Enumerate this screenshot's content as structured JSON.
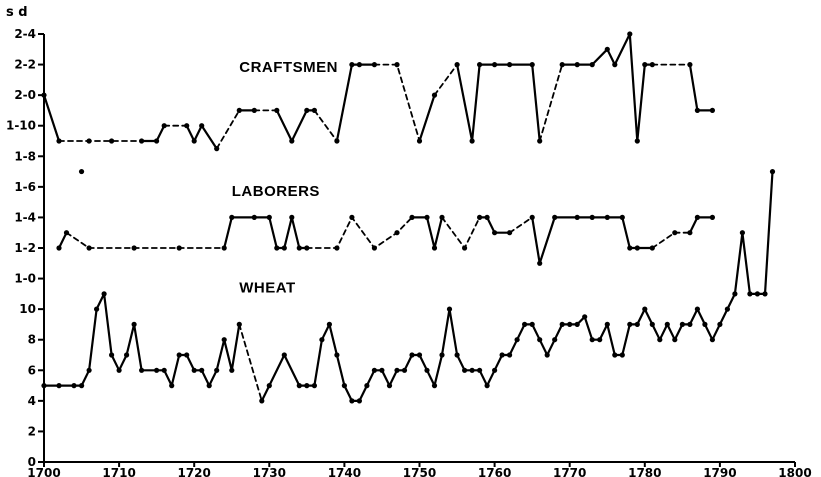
{
  "chart_data": {
    "type": "line",
    "title": "",
    "xlabel": "",
    "ylabel": "s d",
    "xlim": [
      1700,
      1800
    ],
    "x_ticks": [
      1700,
      1710,
      1720,
      1730,
      1740,
      1750,
      1760,
      1770,
      1780,
      1790,
      1800
    ],
    "ylim": [
      0,
      28
    ],
    "y_ticks": [
      {
        "value": 0,
        "label": "0"
      },
      {
        "value": 2,
        "label": "2"
      },
      {
        "value": 4,
        "label": "4"
      },
      {
        "value": 6,
        "label": "6"
      },
      {
        "value": 8,
        "label": "8"
      },
      {
        "value": 10,
        "label": "10"
      },
      {
        "value": 12,
        "label": "1-0"
      },
      {
        "value": 14,
        "label": "1-2"
      },
      {
        "value": 16,
        "label": "1-4"
      },
      {
        "value": 18,
        "label": "1-6"
      },
      {
        "value": 20,
        "label": "1-8"
      },
      {
        "value": 22,
        "label": "1-10"
      },
      {
        "value": 24,
        "label": "2-0"
      },
      {
        "value": 26,
        "label": "2-2"
      },
      {
        "value": 28,
        "label": "2-4"
      }
    ],
    "grid": false,
    "series": [
      {
        "name": "CRAFTSMEN",
        "segments": [
          {
            "style": "solid",
            "points": [
              [
                1700,
                24
              ],
              [
                1702,
                21
              ]
            ]
          },
          {
            "style": "dashed",
            "points": [
              [
                1702,
                21
              ],
              [
                1706,
                21
              ],
              [
                1709,
                21
              ],
              [
                1713,
                21
              ]
            ]
          },
          {
            "style": "solid",
            "points": [
              [
                1713,
                21
              ],
              [
                1715,
                21
              ],
              [
                1716,
                22
              ]
            ]
          },
          {
            "style": "dashed",
            "points": [
              [
                1716,
                22
              ],
              [
                1719,
                22
              ]
            ]
          },
          {
            "style": "solid",
            "points": [
              [
                1719,
                22
              ],
              [
                1720,
                21
              ],
              [
                1721,
                22
              ],
              [
                1723,
                20.5
              ]
            ]
          },
          {
            "style": "dashed",
            "points": [
              [
                1723,
                20.5
              ],
              [
                1726,
                23
              ]
            ]
          },
          {
            "style": "solid",
            "points": [
              [
                1726,
                23
              ],
              [
                1728,
                23
              ]
            ]
          },
          {
            "style": "dashed",
            "points": [
              [
                1728,
                23
              ],
              [
                1731,
                23
              ]
            ]
          },
          {
            "style": "solid",
            "points": [
              [
                1731,
                23
              ],
              [
                1733,
                21
              ],
              [
                1735,
                23
              ],
              [
                1736,
                23
              ]
            ]
          },
          {
            "style": "dashed",
            "points": [
              [
                1736,
                23
              ],
              [
                1739,
                21
              ]
            ]
          },
          {
            "style": "solid",
            "points": [
              [
                1739,
                21
              ],
              [
                1741,
                26
              ],
              [
                1742,
                26
              ],
              [
                1744,
                26
              ]
            ]
          },
          {
            "style": "dashed",
            "points": [
              [
                1744,
                26
              ],
              [
                1747,
                26
              ],
              [
                1750,
                21
              ]
            ]
          },
          {
            "style": "solid",
            "points": [
              [
                1750,
                21
              ],
              [
                1752,
                24
              ]
            ]
          },
          {
            "style": "dashed",
            "points": [
              [
                1752,
                24
              ],
              [
                1755,
                26
              ]
            ]
          },
          {
            "style": "solid",
            "points": [
              [
                1755,
                26
              ],
              [
                1757,
                21
              ],
              [
                1758,
                26
              ],
              [
                1760,
                26
              ],
              [
                1762,
                26
              ],
              [
                1765,
                26
              ],
              [
                1766,
                21
              ]
            ]
          },
          {
            "style": "dashed",
            "points": [
              [
                1766,
                21
              ],
              [
                1769,
                26
              ]
            ]
          },
          {
            "style": "solid",
            "points": [
              [
                1769,
                26
              ],
              [
                1771,
                26
              ],
              [
                1773,
                26
              ],
              [
                1775,
                27
              ],
              [
                1776,
                26
              ],
              [
                1778,
                28
              ],
              [
                1779,
                21
              ],
              [
                1780,
                26
              ],
              [
                1781,
                26
              ]
            ]
          },
          {
            "style": "dashed",
            "points": [
              [
                1781,
                26
              ],
              [
                1786,
                26
              ]
            ]
          },
          {
            "style": "solid",
            "points": [
              [
                1786,
                26
              ],
              [
                1787,
                23
              ],
              [
                1789,
                23
              ]
            ]
          }
        ]
      },
      {
        "name": "LABORERS",
        "segments": [
          {
            "style": "solid",
            "points": [
              [
                1702,
                14
              ],
              [
                1703,
                15
              ]
            ]
          },
          {
            "style": "dashed",
            "points": [
              [
                1703,
                15
              ],
              [
                1706,
                14
              ],
              [
                1712,
                14
              ],
              [
                1718,
                14
              ],
              [
                1724,
                14
              ]
            ]
          },
          {
            "style": "solid",
            "points": [
              [
                1724,
                14
              ],
              [
                1725,
                16
              ],
              [
                1728,
                16
              ],
              [
                1730,
                16
              ],
              [
                1731,
                14
              ],
              [
                1732,
                14
              ],
              [
                1733,
                16
              ],
              [
                1734,
                14
              ],
              [
                1735,
                14
              ]
            ]
          },
          {
            "style": "dashed",
            "points": [
              [
                1735,
                14
              ],
              [
                1739,
                14
              ],
              [
                1741,
                16
              ],
              [
                1744,
                14
              ],
              [
                1747,
                15
              ],
              [
                1749,
                16
              ]
            ]
          },
          {
            "style": "solid",
            "points": [
              [
                1749,
                16
              ],
              [
                1751,
                16
              ],
              [
                1752,
                14
              ],
              [
                1753,
                16
              ]
            ]
          },
          {
            "style": "dashed",
            "points": [
              [
                1753,
                16
              ],
              [
                1756,
                14
              ],
              [
                1758,
                16
              ]
            ]
          },
          {
            "style": "solid",
            "points": [
              [
                1758,
                16
              ],
              [
                1759,
                16
              ],
              [
                1760,
                15
              ],
              [
                1762,
                15
              ]
            ]
          },
          {
            "style": "dashed",
            "points": [
              [
                1762,
                15
              ],
              [
                1765,
                16
              ]
            ]
          },
          {
            "style": "solid",
            "points": [
              [
                1765,
                16
              ],
              [
                1766,
                13
              ],
              [
                1768,
                16
              ],
              [
                1771,
                16
              ],
              [
                1773,
                16
              ],
              [
                1775,
                16
              ],
              [
                1777,
                16
              ],
              [
                1778,
                14
              ],
              [
                1779,
                14
              ],
              [
                1781,
                14
              ]
            ]
          },
          {
            "style": "dashed",
            "points": [
              [
                1781,
                14
              ],
              [
                1784,
                15
              ],
              [
                1786,
                15
              ]
            ]
          },
          {
            "style": "solid",
            "points": [
              [
                1786,
                15
              ],
              [
                1787,
                16
              ],
              [
                1789,
                16
              ]
            ]
          }
        ]
      },
      {
        "name": "WHEAT",
        "segments": [
          {
            "style": "solid",
            "points": [
              [
                1700,
                5
              ],
              [
                1702,
                5
              ],
              [
                1704,
                5
              ],
              [
                1705,
                5
              ],
              [
                1706,
                6
              ],
              [
                1707,
                10
              ],
              [
                1708,
                11
              ],
              [
                1709,
                7
              ],
              [
                1710,
                6
              ],
              [
                1711,
                7
              ],
              [
                1712,
                9
              ],
              [
                1713,
                6
              ],
              [
                1715,
                6
              ],
              [
                1716,
                6
              ],
              [
                1717,
                5
              ],
              [
                1718,
                7
              ],
              [
                1719,
                7
              ],
              [
                1720,
                6
              ],
              [
                1721,
                6
              ],
              [
                1722,
                5
              ],
              [
                1723,
                6
              ],
              [
                1724,
                8
              ],
              [
                1725,
                6
              ],
              [
                1726,
                9
              ]
            ]
          },
          {
            "style": "dashed",
            "points": [
              [
                1726,
                9
              ],
              [
                1729,
                4
              ]
            ]
          },
          {
            "style": "solid",
            "points": [
              [
                1729,
                4
              ],
              [
                1730,
                5
              ],
              [
                1732,
                7
              ],
              [
                1734,
                5
              ],
              [
                1735,
                5
              ],
              [
                1736,
                5
              ],
              [
                1737,
                8
              ],
              [
                1738,
                9
              ],
              [
                1739,
                7
              ],
              [
                1740,
                5
              ],
              [
                1741,
                4
              ],
              [
                1742,
                4
              ],
              [
                1743,
                5
              ],
              [
                1744,
                6
              ],
              [
                1745,
                6
              ],
              [
                1746,
                5
              ],
              [
                1747,
                6
              ],
              [
                1748,
                6
              ],
              [
                1749,
                7
              ],
              [
                1750,
                7
              ],
              [
                1751,
                6
              ],
              [
                1752,
                5
              ],
              [
                1753,
                7
              ],
              [
                1754,
                10
              ],
              [
                1755,
                7
              ],
              [
                1756,
                6
              ],
              [
                1757,
                6
              ],
              [
                1758,
                6
              ],
              [
                1759,
                5
              ],
              [
                1760,
                6
              ],
              [
                1761,
                7
              ],
              [
                1762,
                7
              ],
              [
                1763,
                8
              ],
              [
                1764,
                9
              ],
              [
                1765,
                9
              ],
              [
                1766,
                8
              ],
              [
                1767,
                7
              ],
              [
                1768,
                8
              ],
              [
                1769,
                9
              ],
              [
                1770,
                9
              ],
              [
                1771,
                9
              ],
              [
                1772,
                9.5
              ],
              [
                1773,
                8
              ],
              [
                1774,
                8
              ],
              [
                1775,
                9
              ],
              [
                1776,
                7
              ],
              [
                1777,
                7
              ],
              [
                1778,
                9
              ],
              [
                1779,
                9
              ],
              [
                1780,
                10
              ],
              [
                1781,
                9
              ],
              [
                1782,
                8
              ],
              [
                1783,
                9
              ],
              [
                1784,
                8
              ],
              [
                1785,
                9
              ],
              [
                1786,
                9
              ],
              [
                1787,
                10
              ],
              [
                1788,
                9
              ],
              [
                1789,
                8
              ],
              [
                1790,
                9
              ],
              [
                1791,
                10
              ],
              [
                1792,
                11
              ],
              [
                1793,
                15
              ],
              [
                1794,
                11
              ],
              [
                1795,
                11
              ],
              [
                1796,
                11
              ],
              [
                1797,
                19
              ]
            ]
          }
        ]
      }
    ],
    "annotations": [
      {
        "type": "isolated-point",
        "x": 1705,
        "y": 19
      }
    ]
  }
}
